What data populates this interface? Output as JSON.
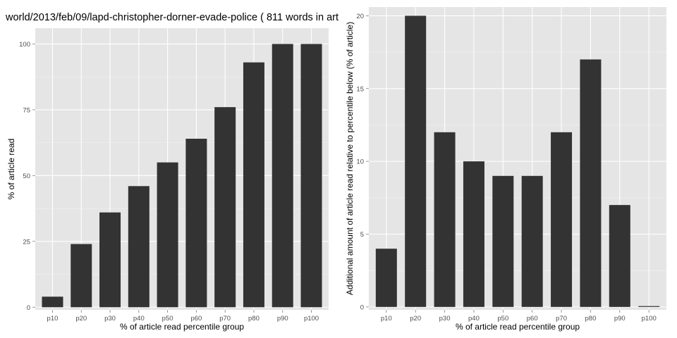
{
  "title": "world/2013/feb/09/lapd-christopher-dorner-evade-police ( 811 words in art",
  "chart_data": [
    {
      "type": "bar",
      "categories": [
        "p10",
        "p20",
        "p30",
        "p40",
        "p50",
        "p60",
        "p70",
        "p80",
        "p90",
        "p100"
      ],
      "values": [
        4,
        24,
        36,
        46,
        55,
        64,
        76,
        93,
        100,
        100
      ],
      "xlabel": "% of article read percentile group",
      "ylabel": "% of article read",
      "ylim": [
        -1,
        106
      ],
      "yticks": [
        0,
        25,
        50,
        75,
        100
      ],
      "grid": true
    },
    {
      "type": "bar",
      "categories": [
        "p10",
        "p20",
        "p30",
        "p40",
        "p50",
        "p60",
        "p70",
        "p80",
        "p90",
        "p100"
      ],
      "values": [
        4,
        20,
        12,
        10,
        9,
        9,
        12,
        17,
        7,
        0
      ],
      "xlabel": "% of article read percentile group",
      "ylabel": "Additional amount of article read relative to percentile below (% of article)",
      "ylim": [
        -0.2,
        20.6
      ],
      "yticks": [
        0,
        5,
        10,
        15,
        20
      ],
      "grid": true
    }
  ],
  "colors": {
    "panel_bg": "#e5e5e5",
    "grid": "#ffffff",
    "bar": "#333333"
  }
}
